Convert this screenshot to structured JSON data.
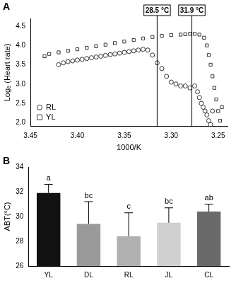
{
  "chart_data": [
    {
      "type": "scatter",
      "title": "A",
      "x_label": "1000/K",
      "y_label": "Logₑ (Heart rate)",
      "xlim": [
        3.45,
        3.24
      ],
      "xticks": [
        3.45,
        {
          "value": 3.4,
          "label": "3.40"
        },
        3.35,
        {
          "value": 3.3,
          "label": "3.30"
        },
        3.25
      ],
      "ylim": [
        1.9,
        4.7
      ],
      "yticks": [
        {
          "value": 2,
          "label": "2.0"
        },
        2.5,
        {
          "value": 3,
          "label": "3.0"
        },
        3.5,
        {
          "value": 4,
          "label": "4.0"
        },
        4.5
      ],
      "grid": false,
      "legend": "lower left",
      "annotations": [
        {
          "x": 3.315,
          "label": "28.5 °C"
        },
        {
          "x": 3.278,
          "label": "31.9 °C"
        }
      ],
      "series": [
        {
          "name": "RL",
          "color": "#333333",
          "marker": "circle",
          "x": [
            3.42,
            3.415,
            3.41,
            3.405,
            3.4,
            3.395,
            3.39,
            3.385,
            3.38,
            3.375,
            3.37,
            3.365,
            3.36,
            3.355,
            3.35,
            3.345,
            3.34,
            3.335,
            3.33,
            3.325,
            3.32,
            3.315,
            3.31,
            3.305,
            3.3,
            3.295,
            3.29,
            3.285,
            3.28,
            3.275,
            3.272,
            3.27,
            3.268,
            3.266,
            3.264,
            3.262,
            3.26,
            3.258,
            3.256
          ],
          "values": [
            3.5,
            3.55,
            3.58,
            3.6,
            3.62,
            3.64,
            3.66,
            3.68,
            3.7,
            3.72,
            3.74,
            3.76,
            3.78,
            3.8,
            3.82,
            3.84,
            3.86,
            3.88,
            3.9,
            3.88,
            3.75,
            3.55,
            3.4,
            3.2,
            3.05,
            3.0,
            2.95,
            2.95,
            2.9,
            2.95,
            2.8,
            2.65,
            2.5,
            2.4,
            2.3,
            2.2,
            2.05,
            1.95,
            2.3
          ]
        },
        {
          "name": "YL",
          "color": "#333333",
          "marker": "square",
          "x": [
            3.435,
            3.43,
            3.42,
            3.41,
            3.4,
            3.39,
            3.38,
            3.37,
            3.36,
            3.35,
            3.34,
            3.33,
            3.32,
            3.31,
            3.3,
            3.29,
            3.285,
            3.28,
            3.275,
            3.27,
            3.265,
            3.262,
            3.26,
            3.258,
            3.256,
            3.254,
            3.252,
            3.25,
            3.248,
            3.246
          ],
          "values": [
            3.72,
            3.78,
            3.82,
            3.86,
            3.9,
            3.94,
            3.98,
            4.02,
            4.06,
            4.1,
            4.14,
            4.18,
            4.22,
            4.25,
            4.27,
            4.28,
            4.29,
            4.3,
            4.3,
            4.28,
            4.2,
            4.0,
            3.75,
            3.5,
            3.2,
            2.9,
            2.6,
            2.3,
            2.05,
            2.4
          ]
        }
      ]
    },
    {
      "type": "bar",
      "title": "B",
      "y_label": "ABT(°C)",
      "categories": [
        "YL",
        "DL",
        "RL",
        "JL",
        "CL"
      ],
      "values": [
        31.9,
        29.4,
        28.4,
        29.5,
        30.4
      ],
      "errors": [
        0.7,
        1.8,
        1.9,
        1.2,
        0.6
      ],
      "letters": [
        "a",
        "bc",
        "c",
        "bc",
        "ab"
      ],
      "colors": [
        "#111111",
        "#9a9a9a",
        "#b0b0b0",
        "#d0d0d0",
        "#6a6a6a"
      ],
      "ylim": [
        26,
        34
      ],
      "yticks": [
        26,
        28,
        30,
        32,
        34
      ],
      "grid": false
    }
  ]
}
